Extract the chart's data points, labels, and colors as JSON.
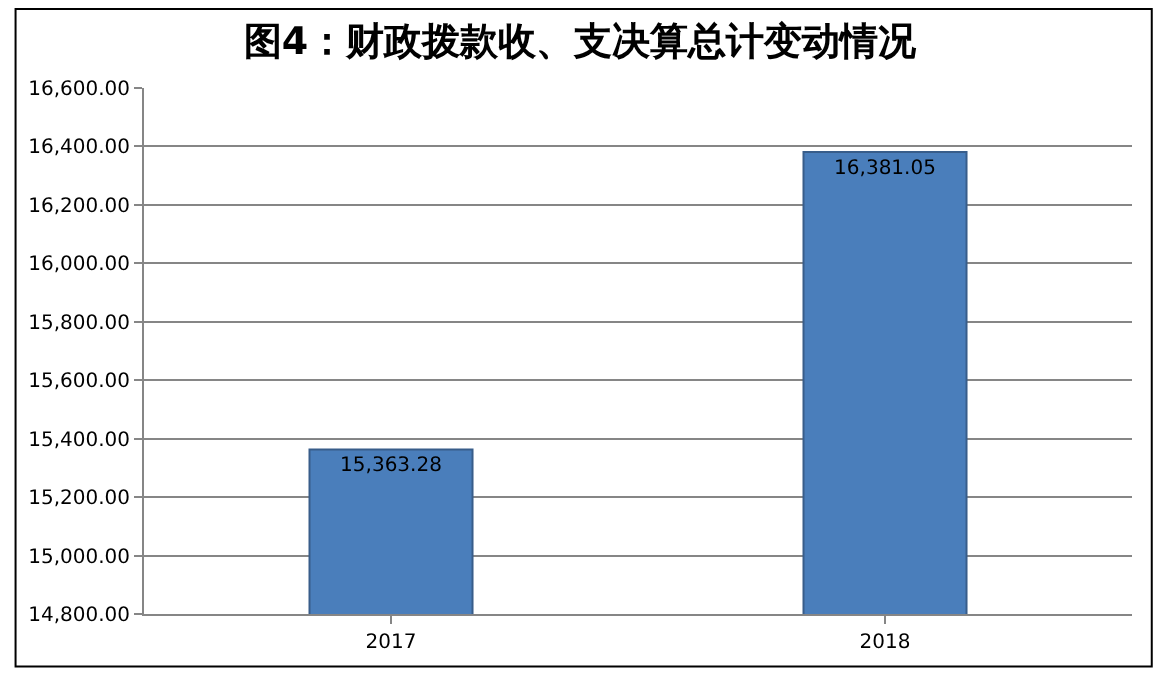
{
  "chart_data": {
    "type": "bar",
    "title": "图4：财政拨款收、支决算总计变动情况",
    "categories": [
      "2017",
      "2018"
    ],
    "values": [
      15363.28,
      16381.05
    ],
    "value_labels": [
      "15,363.28",
      "16,381.05"
    ],
    "color": "#4a7ebb",
    "ylim": [
      14800,
      16600
    ],
    "yticks": [
      {
        "value": 14800,
        "label": "14,800.00"
      },
      {
        "value": 15000,
        "label": "15,000.00"
      },
      {
        "value": 15200,
        "label": "15,200.00"
      },
      {
        "value": 15400,
        "label": "15,400.00"
      },
      {
        "value": 15600,
        "label": "15,600.00"
      },
      {
        "value": 15800,
        "label": "15,800.00"
      },
      {
        "value": 16000,
        "label": "16,000.00"
      },
      {
        "value": 16200,
        "label": "16,200.00"
      },
      {
        "value": 16400,
        "label": "16,400.00"
      },
      {
        "value": 16600,
        "label": "16,600.00"
      }
    ],
    "grid": "y",
    "legend": false
  }
}
